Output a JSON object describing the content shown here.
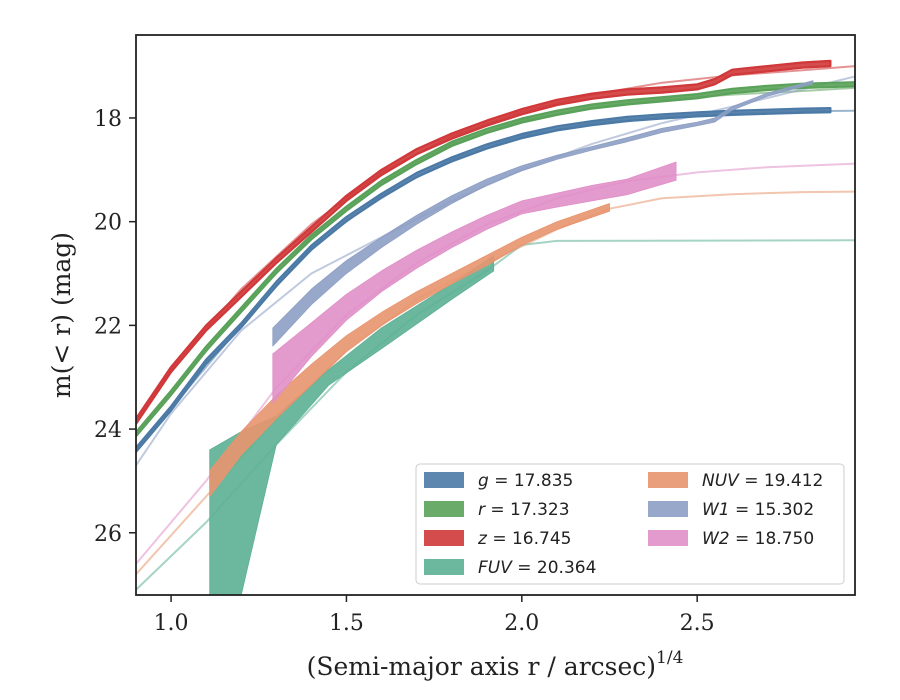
{
  "chart_data": {
    "type": "line",
    "xlabel": "(Semi-major axis r / arcsec)",
    "xlabel_power": "1/4",
    "ylabel": "m(< r) (mag)",
    "xlim": [
      0.9,
      2.95
    ],
    "ylim": [
      27.2,
      16.4
    ],
    "y_inverted": true,
    "x_ticks": [
      "1.0",
      "1.5",
      "2.0",
      "2.5"
    ],
    "y_ticks": [
      "18",
      "20",
      "22",
      "24",
      "26"
    ],
    "legend": {
      "placement": "lower-right",
      "columns": 2
    },
    "series": [
      {
        "name": "g = 17.835",
        "color": "#4c7aa6",
        "band_width": 0.04,
        "data": [
          [
            0.9,
            24.4
          ],
          [
            1.0,
            23.6
          ],
          [
            1.1,
            22.7
          ],
          [
            1.2,
            22.0
          ],
          [
            1.3,
            21.2
          ],
          [
            1.4,
            20.5
          ],
          [
            1.5,
            19.95
          ],
          [
            1.6,
            19.5
          ],
          [
            1.7,
            19.1
          ],
          [
            1.8,
            18.8
          ],
          [
            1.9,
            18.55
          ],
          [
            2.0,
            18.35
          ],
          [
            2.1,
            18.2
          ],
          [
            2.2,
            18.1
          ],
          [
            2.3,
            18.02
          ],
          [
            2.4,
            17.97
          ],
          [
            2.5,
            17.93
          ],
          [
            2.6,
            17.9
          ],
          [
            2.7,
            17.88
          ],
          [
            2.8,
            17.86
          ],
          [
            2.88,
            17.85
          ]
        ],
        "model": [
          [
            0.9,
            24.4
          ],
          [
            1.0,
            23.6
          ],
          [
            1.2,
            22.0
          ],
          [
            1.4,
            20.5
          ],
          [
            1.6,
            19.5
          ],
          [
            1.8,
            18.8
          ],
          [
            2.0,
            18.35
          ],
          [
            2.2,
            18.1
          ],
          [
            2.4,
            17.98
          ],
          [
            2.6,
            17.92
          ],
          [
            2.8,
            17.87
          ],
          [
            2.95,
            17.86
          ]
        ]
      },
      {
        "name": "r = 17.323",
        "color": "#5aa25a",
        "band_width": 0.04,
        "data": [
          [
            0.9,
            24.1
          ],
          [
            1.0,
            23.3
          ],
          [
            1.1,
            22.45
          ],
          [
            1.2,
            21.7
          ],
          [
            1.3,
            20.95
          ],
          [
            1.4,
            20.3
          ],
          [
            1.5,
            19.75
          ],
          [
            1.6,
            19.25
          ],
          [
            1.7,
            18.85
          ],
          [
            1.8,
            18.5
          ],
          [
            1.9,
            18.25
          ],
          [
            2.0,
            18.05
          ],
          [
            2.1,
            17.9
          ],
          [
            2.2,
            17.78
          ],
          [
            2.3,
            17.7
          ],
          [
            2.4,
            17.64
          ],
          [
            2.5,
            17.58
          ],
          [
            2.6,
            17.48
          ],
          [
            2.7,
            17.42
          ],
          [
            2.8,
            17.38
          ],
          [
            2.95,
            17.35
          ]
        ],
        "model": [
          [
            0.9,
            24.1
          ],
          [
            1.0,
            23.3
          ],
          [
            1.2,
            21.7
          ],
          [
            1.4,
            20.3
          ],
          [
            1.6,
            19.25
          ],
          [
            1.8,
            18.5
          ],
          [
            2.0,
            18.05
          ],
          [
            2.2,
            17.8
          ],
          [
            2.4,
            17.65
          ],
          [
            2.6,
            17.55
          ],
          [
            2.8,
            17.48
          ],
          [
            2.95,
            17.42
          ]
        ]
      },
      {
        "name": "z = 16.745",
        "color": "#d0383a",
        "band_width": 0.05,
        "data": [
          [
            0.9,
            23.85
          ],
          [
            1.0,
            22.85
          ],
          [
            1.1,
            22.05
          ],
          [
            1.2,
            21.4
          ],
          [
            1.3,
            20.75
          ],
          [
            1.4,
            20.15
          ],
          [
            1.5,
            19.55
          ],
          [
            1.6,
            19.05
          ],
          [
            1.7,
            18.65
          ],
          [
            1.8,
            18.35
          ],
          [
            1.9,
            18.1
          ],
          [
            2.0,
            17.88
          ],
          [
            2.1,
            17.7
          ],
          [
            2.2,
            17.58
          ],
          [
            2.3,
            17.5
          ],
          [
            2.4,
            17.46
          ],
          [
            2.5,
            17.4
          ],
          [
            2.55,
            17.3
          ],
          [
            2.6,
            17.12
          ],
          [
            2.7,
            17.05
          ],
          [
            2.8,
            16.98
          ],
          [
            2.88,
            16.95
          ]
        ],
        "model": [
          [
            0.9,
            23.85
          ],
          [
            1.0,
            22.85
          ],
          [
            1.2,
            21.3
          ],
          [
            1.4,
            20.05
          ],
          [
            1.6,
            19.05
          ],
          [
            1.8,
            18.35
          ],
          [
            2.0,
            17.88
          ],
          [
            2.2,
            17.55
          ],
          [
            2.4,
            17.32
          ],
          [
            2.6,
            17.18
          ],
          [
            2.8,
            17.08
          ],
          [
            2.95,
            17.0
          ]
        ]
      },
      {
        "name": "FUV = 20.364",
        "color": "#5cb094",
        "data": [
          [
            1.11,
            24.4,
            27.2
          ],
          [
            1.2,
            24.05,
            27.2
          ],
          [
            1.3,
            23.75,
            24.3
          ],
          [
            1.45,
            22.85,
            23.15
          ],
          [
            1.6,
            22.05,
            22.45
          ],
          [
            1.8,
            21.2,
            21.5
          ],
          [
            1.92,
            20.65,
            20.95
          ]
        ],
        "model": [
          [
            0.9,
            27.1
          ],
          [
            1.1,
            25.8
          ],
          [
            1.3,
            24.3
          ],
          [
            1.5,
            22.9
          ],
          [
            1.7,
            21.8
          ],
          [
            1.9,
            20.95
          ],
          [
            2.0,
            20.45
          ],
          [
            2.1,
            20.37
          ],
          [
            2.95,
            20.36
          ]
        ]
      },
      {
        "name": "NUV = 19.412",
        "color": "#e8956e",
        "data": [
          [
            1.11,
            24.8,
            25.3
          ],
          [
            1.2,
            24.05,
            24.5
          ],
          [
            1.3,
            23.35,
            23.8
          ],
          [
            1.4,
            22.75,
            23.15
          ],
          [
            1.5,
            22.2,
            22.5
          ],
          [
            1.6,
            21.75,
            22.0
          ],
          [
            1.7,
            21.35,
            21.58
          ],
          [
            1.8,
            21.0,
            21.2
          ],
          [
            1.9,
            20.65,
            20.85
          ],
          [
            2.0,
            20.3,
            20.45
          ],
          [
            2.1,
            20.0,
            20.15
          ],
          [
            2.25,
            19.65,
            19.8
          ]
        ],
        "model": [
          [
            0.9,
            26.8
          ],
          [
            1.1,
            25.3
          ],
          [
            1.3,
            23.8
          ],
          [
            1.5,
            22.5
          ],
          [
            1.7,
            21.5
          ],
          [
            1.9,
            20.8
          ],
          [
            2.1,
            20.15
          ],
          [
            2.25,
            19.75
          ],
          [
            2.4,
            19.55
          ],
          [
            2.6,
            19.47
          ],
          [
            2.8,
            19.43
          ],
          [
            2.95,
            19.42
          ]
        ]
      },
      {
        "name": "W1 = 15.302",
        "color": "#8d9fc4",
        "data": [
          [
            1.29,
            22.05,
            22.4
          ],
          [
            1.4,
            21.3,
            21.6
          ],
          [
            1.5,
            20.75,
            21.0
          ],
          [
            1.6,
            20.3,
            20.5
          ],
          [
            1.7,
            19.88,
            20.05
          ],
          [
            1.8,
            19.5,
            19.65
          ],
          [
            1.9,
            19.18,
            19.3
          ],
          [
            2.0,
            18.92,
            19.02
          ],
          [
            2.1,
            18.72,
            18.8
          ],
          [
            2.2,
            18.55,
            18.62
          ],
          [
            2.3,
            18.38,
            18.46
          ],
          [
            2.4,
            18.2,
            18.28
          ],
          [
            2.5,
            18.08,
            18.15
          ],
          [
            2.55,
            18.0,
            18.08
          ],
          [
            2.6,
            17.78,
            17.85
          ],
          [
            2.7,
            17.52,
            17.58
          ],
          [
            2.83,
            17.28,
            17.34
          ]
        ],
        "model": [
          [
            0.9,
            24.7
          ],
          [
            1.0,
            23.7
          ],
          [
            1.2,
            22.1
          ],
          [
            1.4,
            21.0
          ],
          [
            1.6,
            20.3
          ],
          [
            1.8,
            19.6
          ],
          [
            2.0,
            19.0
          ],
          [
            2.2,
            18.5
          ],
          [
            2.4,
            18.1
          ],
          [
            2.6,
            17.78
          ],
          [
            2.8,
            17.45
          ],
          [
            2.95,
            17.2
          ]
        ]
      },
      {
        "name": "W2 = 18.750",
        "color": "#e08fc8",
        "data": [
          [
            1.29,
            22.55,
            23.5
          ],
          [
            1.4,
            21.95,
            22.6
          ],
          [
            1.5,
            21.4,
            21.9
          ],
          [
            1.6,
            20.95,
            21.35
          ],
          [
            1.7,
            20.55,
            20.9
          ],
          [
            1.8,
            20.2,
            20.5
          ],
          [
            1.9,
            19.88,
            20.15
          ],
          [
            2.0,
            19.6,
            19.85
          ],
          [
            2.1,
            19.45,
            19.72
          ],
          [
            2.2,
            19.3,
            19.6
          ],
          [
            2.3,
            19.18,
            19.48
          ],
          [
            2.44,
            18.85,
            19.2
          ]
        ],
        "model": [
          [
            0.9,
            26.6
          ],
          [
            1.1,
            25.0
          ],
          [
            1.3,
            23.2
          ],
          [
            1.5,
            21.8
          ],
          [
            1.7,
            20.8
          ],
          [
            1.9,
            20.05
          ],
          [
            2.1,
            19.55
          ],
          [
            2.3,
            19.22
          ],
          [
            2.5,
            19.05
          ],
          [
            2.7,
            18.95
          ],
          [
            2.95,
            18.88
          ]
        ]
      }
    ]
  }
}
